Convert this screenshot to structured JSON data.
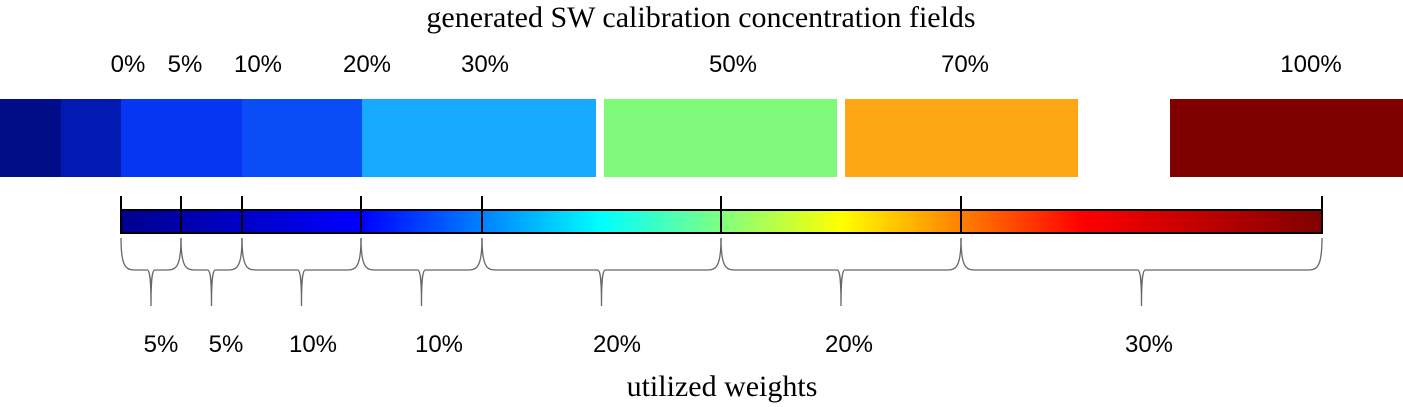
{
  "top_title": "generated SW calibration concentration fields",
  "bottom_title": "utilized weights",
  "fields": [
    {
      "label": "0%",
      "color": "#000c88"
    },
    {
      "label": "5%",
      "color": "#0219b4"
    },
    {
      "label": "10%",
      "color": "#0636f2"
    },
    {
      "label": "20%",
      "color": "#0a4cf6"
    },
    {
      "label": "30%",
      "color": "#17a8ff"
    },
    {
      "label": "50%",
      "color": "#7ef97a"
    },
    {
      "label": "70%",
      "color": "#ffa614"
    },
    {
      "label": "100%",
      "color": "#800000"
    }
  ],
  "colormap": [
    "#00008f",
    "#0000ff",
    "#00ffff",
    "#ffff00",
    "#ff0000",
    "#800000"
  ],
  "weights": [
    {
      "label": "5%"
    },
    {
      "label": "5%"
    },
    {
      "label": "10%"
    },
    {
      "label": "10%"
    },
    {
      "label": "20%"
    },
    {
      "label": "20%"
    },
    {
      "label": "30%"
    }
  ]
}
